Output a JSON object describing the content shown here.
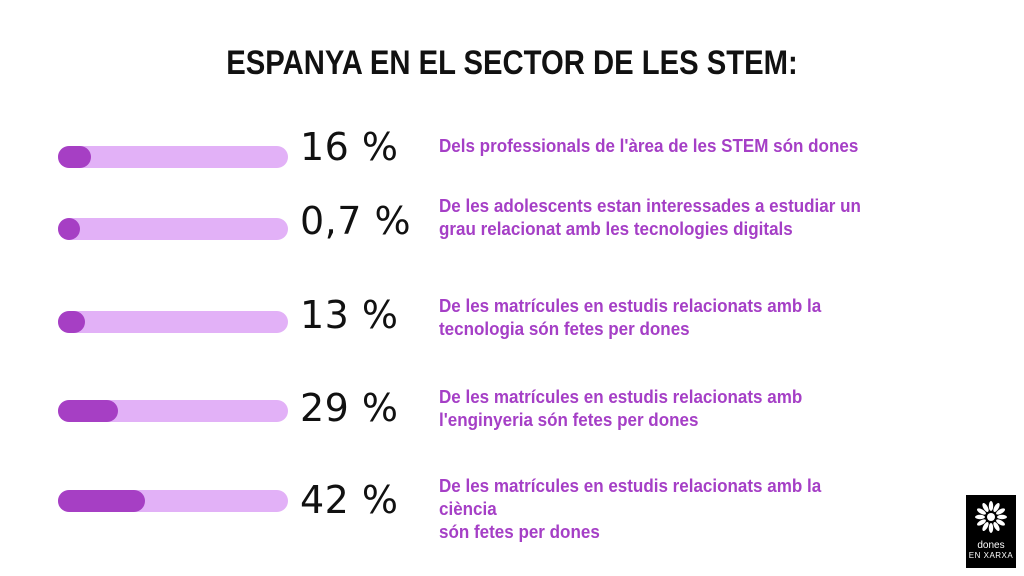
{
  "title": "ESPANYA EN EL SECTOR DE LES STEM:",
  "chart_data": {
    "type": "bar",
    "title": "ESPANYA EN EL SECTOR DE LES STEM:",
    "xlim": [
      0,
      100
    ],
    "categories": [
      "Dels professionals de l'àrea de les STEM són dones",
      "De les adolescents estan interessades a estudiar un grau relacionat amb les tecnologies digitals",
      "De les matrícules en estudis relacionats amb la tecnologia són fetes per dones",
      "De les matrícules en estudis relacionats amb l'enginyeria són fetes per dones",
      "De les matrícules en estudis relacionats amb la ciència són fetes per dones"
    ],
    "values": [
      16,
      0.7,
      13,
      29,
      42
    ],
    "value_labels": [
      "16 %",
      "0,7 %",
      "13 %",
      "29 %",
      "42 %"
    ],
    "descriptions": [
      "Dels professionals de l'àrea de les STEM són dones",
      "De les adolescents estan interessades a estudiar un\ngrau relacionat amb les tecnologies digitals",
      "De les matrícules en estudis relacionats amb la\ntecnologia són fetes per dones",
      "De les matrícules en estudis relacionats amb\nl'enginyeria són fetes per dones",
      "De les matrícules en estudis relacionats amb la ciència\nsón fetes per dones"
    ]
  },
  "colors": {
    "track": "#e2b1f7",
    "fill": "#a63fc4",
    "text_accent": "#a53fc6"
  },
  "logo": {
    "line1": "dones",
    "line2": "EN XARXA",
    "icon": "flower-icon"
  }
}
